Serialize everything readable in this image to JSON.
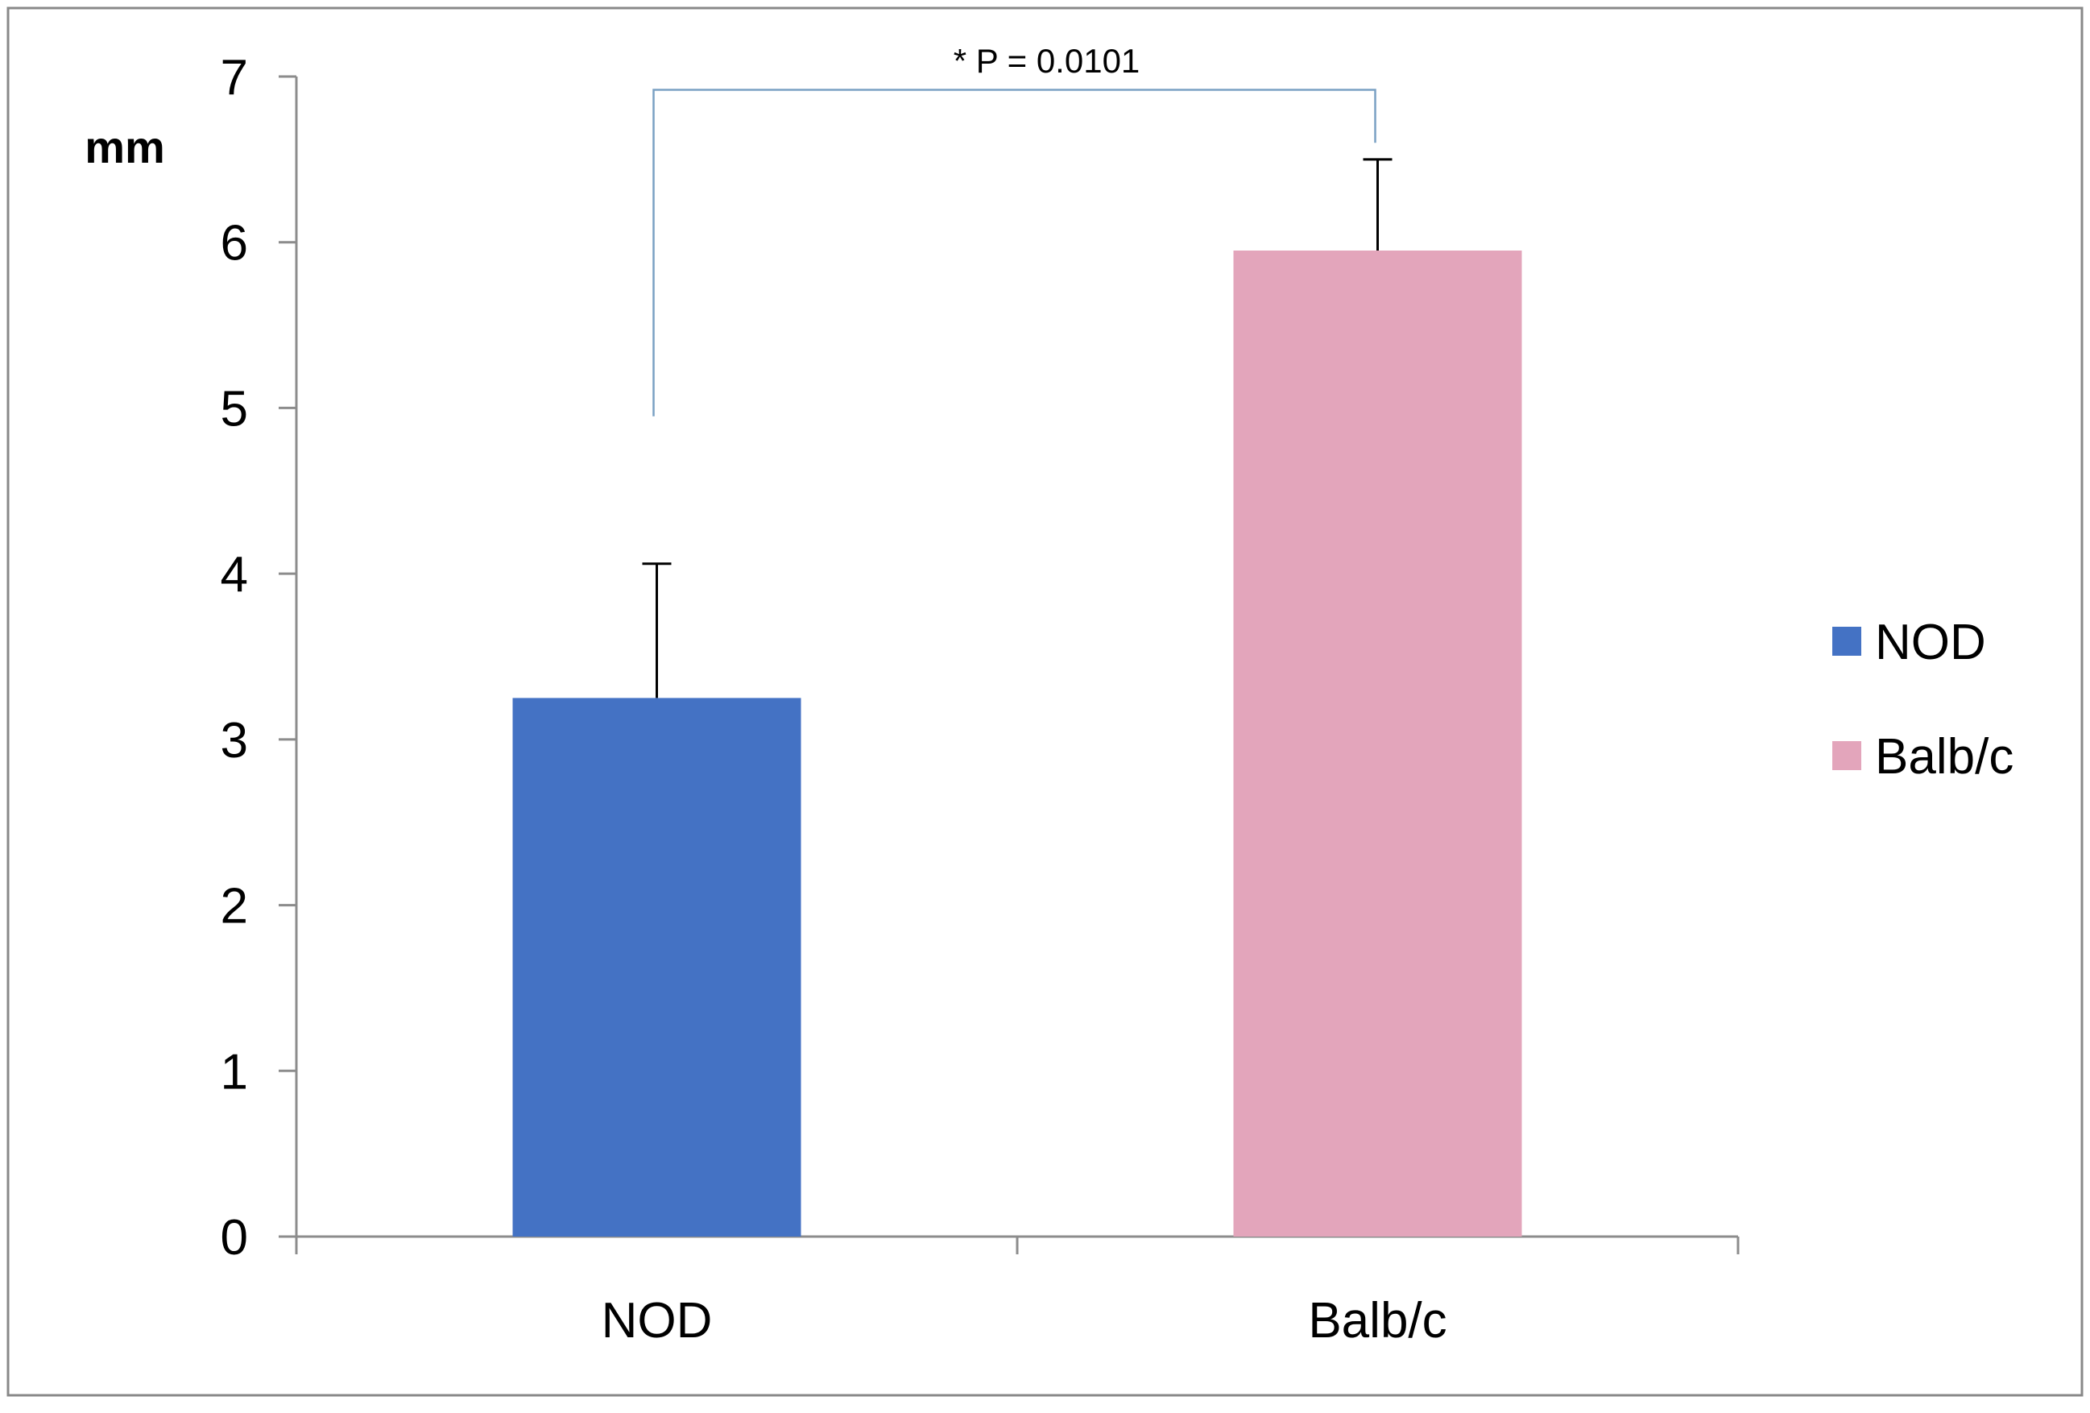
{
  "chart_data": {
    "type": "bar",
    "title": "",
    "xlabel": "",
    "ylabel": "mm",
    "categories": [
      "NOD",
      "Balb/c"
    ],
    "series": [
      {
        "name": "NOD",
        "color": "#4472c4",
        "values": [
          3.25,
          null
        ]
      },
      {
        "name": "Balb/c",
        "color": "#e3a5bb",
        "values": [
          null,
          5.95
        ]
      }
    ],
    "values": [
      3.25,
      5.95
    ],
    "error_upper": [
      0.81,
      0.55
    ],
    "ylim": [
      0,
      7
    ],
    "yticks": [
      "0",
      "1",
      "2",
      "3",
      "4",
      "5",
      "6",
      "7"
    ],
    "grid": false,
    "legend": {
      "position": "right",
      "entries": [
        {
          "label": "NOD",
          "color": "#4472c4"
        },
        {
          "label": "Balb/c",
          "color": "#e3a5bb"
        }
      ]
    },
    "annotation": {
      "text": "* P = 0.0101",
      "from_category": "NOD",
      "to_category": "Balb/c",
      "left_anchor_value": 4.95,
      "right_anchor_value": 6.6,
      "level_value": 6.92
    }
  }
}
